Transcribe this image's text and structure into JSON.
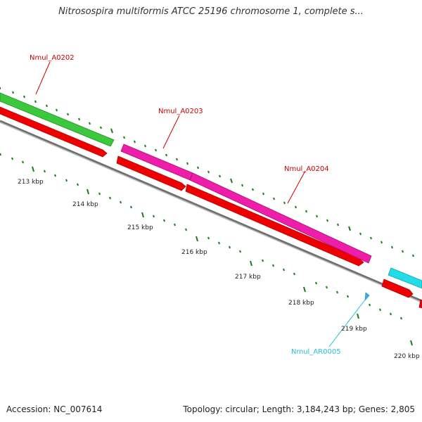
{
  "title": "Nitrosospira multiformis ATCC 25196 chromosome 1, complete s...",
  "footer": {
    "accession": "Accession: NC_007614",
    "summary": "Topology: circular; Length: 3,184,243 bp; Genes: 2,805"
  },
  "colors": {
    "backbone": "#8c8c8c",
    "cds_strand": "#ee0000",
    "gene_label": "#cc0000",
    "repeat_label": "#22c4d8",
    "tick": "#1a7a1a",
    "green_feature": "#3cc83c",
    "magenta_feature": "#ee1eaa",
    "cyan_feature": "#22dde8"
  },
  "kbp_labels": [
    "213 kbp",
    "214 kbp",
    "215 kbp",
    "216 kbp",
    "217 kbp",
    "218 kbp",
    "219 kbp",
    "220 kbp"
  ],
  "gene_labels": [
    {
      "name": "Nmul_A0202",
      "type": "gene"
    },
    {
      "name": "Nmul_A0203",
      "type": "gene"
    },
    {
      "name": "Nmul_A0204",
      "type": "gene"
    },
    {
      "name": "Nmul_AR0005",
      "type": "repeat"
    }
  ],
  "features": [
    {
      "name": "Nmul_A0202",
      "color": "green"
    },
    {
      "name": "Nmul_A0203",
      "color": "magenta"
    },
    {
      "name": "Nmul_A0204",
      "color": "magenta"
    },
    {
      "name": "unlabeled-cyan",
      "color": "cyan"
    }
  ]
}
